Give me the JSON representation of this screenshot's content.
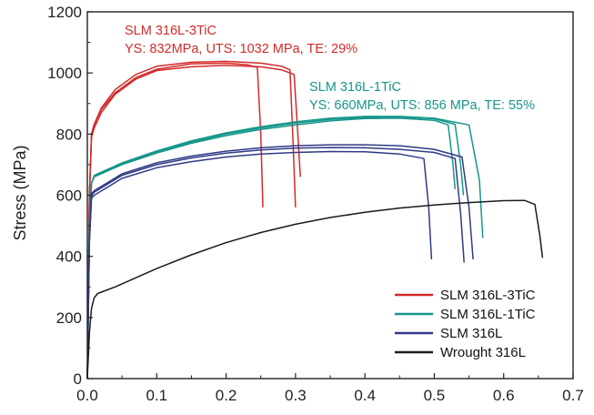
{
  "chart_data": {
    "type": "line",
    "title": "",
    "xlabel": "",
    "ylabel": "Stress (MPa)",
    "xlim": [
      0,
      0.7
    ],
    "ylim": [
      0,
      1200
    ],
    "xticks": [
      "0.0",
      "0.1",
      "0.2",
      "0.3",
      "0.4",
      "0.5",
      "0.6",
      "0.7"
    ],
    "yticks": [
      "0",
      "200",
      "400",
      "600",
      "800",
      "1000",
      "1200"
    ],
    "grid": false,
    "legend_position": "bottom-right",
    "annotations": [
      {
        "title": "SLM 316L-3TiC",
        "detail": "YS: 832MPa, UTS: 1032 MPa, TE: 29%",
        "color": "#d32a2a"
      },
      {
        "title": "SLM 316L-1TiC",
        "detail": "YS: 660MPa, UTS: 856 MPa, TE: 55%",
        "color": "#16968a"
      }
    ],
    "series": [
      {
        "name": "SLM 316L-3TiC",
        "color": "#d32a2a",
        "curves": [
          {
            "x": [
              0,
              0.003,
              0.006,
              0.01,
              0.02,
              0.04,
              0.07,
              0.1,
              0.15,
              0.2,
              0.23,
              0.245,
              0.25,
              0.253
            ],
            "y": [
              0,
              600,
              800,
              832,
              880,
              935,
              985,
              1012,
              1030,
              1032,
              1027,
              1018,
              800,
              560
            ]
          },
          {
            "x": [
              0,
              0.003,
              0.006,
              0.01,
              0.02,
              0.04,
              0.07,
              0.1,
              0.15,
              0.2,
              0.25,
              0.28,
              0.292,
              0.296,
              0.3
            ],
            "y": [
              0,
              600,
              800,
              832,
              885,
              945,
              995,
              1022,
              1035,
              1038,
              1032,
              1022,
              1010,
              800,
              560
            ]
          },
          {
            "x": [
              0,
              0.003,
              0.006,
              0.01,
              0.02,
              0.04,
              0.07,
              0.1,
              0.15,
              0.2,
              0.25,
              0.28,
              0.298,
              0.302,
              0.307
            ],
            "y": [
              0,
              600,
              790,
              820,
              870,
              930,
              980,
              1008,
              1020,
              1025,
              1020,
              1010,
              995,
              850,
              660
            ]
          }
        ]
      },
      {
        "name": "SLM 316L-1TiC",
        "color": "#16968a",
        "curves": [
          {
            "x": [
              0,
              0.003,
              0.006,
              0.01,
              0.05,
              0.1,
              0.15,
              0.2,
              0.25,
              0.3,
              0.35,
              0.4,
              0.45,
              0.5,
              0.52,
              0.527,
              0.53
            ],
            "y": [
              0,
              500,
              640,
              660,
              700,
              738,
              770,
              795,
              815,
              830,
              843,
              851,
              852,
              845,
              830,
              700,
              620
            ]
          },
          {
            "x": [
              0,
              0.003,
              0.006,
              0.01,
              0.05,
              0.1,
              0.15,
              0.2,
              0.25,
              0.3,
              0.35,
              0.4,
              0.45,
              0.5,
              0.53,
              0.538,
              0.542
            ],
            "y": [
              0,
              500,
              640,
              662,
              703,
              742,
              774,
              800,
              820,
              836,
              848,
              855,
              856,
              850,
              832,
              700,
              600
            ]
          },
          {
            "x": [
              0,
              0.003,
              0.006,
              0.01,
              0.05,
              0.1,
              0.15,
              0.2,
              0.25,
              0.3,
              0.35,
              0.4,
              0.45,
              0.5,
              0.55,
              0.565,
              0.57
            ],
            "y": [
              0,
              500,
              640,
              665,
              706,
              745,
              778,
              804,
              824,
              840,
              852,
              858,
              858,
              852,
              830,
              650,
              460
            ]
          }
        ]
      },
      {
        "name": "SLM 316L",
        "color": "#2e3a86",
        "curves": [
          {
            "x": [
              0,
              0.003,
              0.006,
              0.01,
              0.05,
              0.1,
              0.15,
              0.2,
              0.25,
              0.3,
              0.35,
              0.4,
              0.45,
              0.485,
              0.492,
              0.496
            ],
            "y": [
              0,
              450,
              590,
              600,
              655,
              690,
              710,
              725,
              735,
              740,
              743,
              742,
              735,
              720,
              560,
              390
            ]
          },
          {
            "x": [
              0,
              0.003,
              0.006,
              0.01,
              0.05,
              0.1,
              0.15,
              0.2,
              0.25,
              0.3,
              0.35,
              0.4,
              0.45,
              0.5,
              0.53,
              0.538,
              0.543
            ],
            "y": [
              0,
              450,
              600,
              610,
              665,
              700,
              722,
              738,
              748,
              754,
              756,
              755,
              750,
              740,
              720,
              540,
              380
            ]
          },
          {
            "x": [
              0,
              0.003,
              0.006,
              0.01,
              0.05,
              0.1,
              0.15,
              0.2,
              0.25,
              0.3,
              0.35,
              0.4,
              0.45,
              0.5,
              0.54,
              0.55,
              0.556
            ],
            "y": [
              0,
              450,
              605,
              615,
              670,
              706,
              728,
              744,
              755,
              762,
              765,
              765,
              762,
              750,
              725,
              560,
              390
            ]
          }
        ]
      },
      {
        "name": "Wrought 316L",
        "color": "#1a1a1a",
        "curves": [
          {
            "x": [
              0,
              0.003,
              0.006,
              0.01,
              0.015,
              0.02,
              0.04,
              0.07,
              0.1,
              0.15,
              0.2,
              0.25,
              0.3,
              0.35,
              0.4,
              0.45,
              0.5,
              0.55,
              0.6,
              0.63,
              0.645,
              0.652,
              0.656
            ],
            "y": [
              0,
              150,
              230,
              265,
              278,
              283,
              300,
              330,
              360,
              405,
              445,
              478,
              505,
              527,
              544,
              558,
              568,
              576,
              582,
              583,
              570,
              470,
              395
            ]
          }
        ]
      }
    ]
  }
}
